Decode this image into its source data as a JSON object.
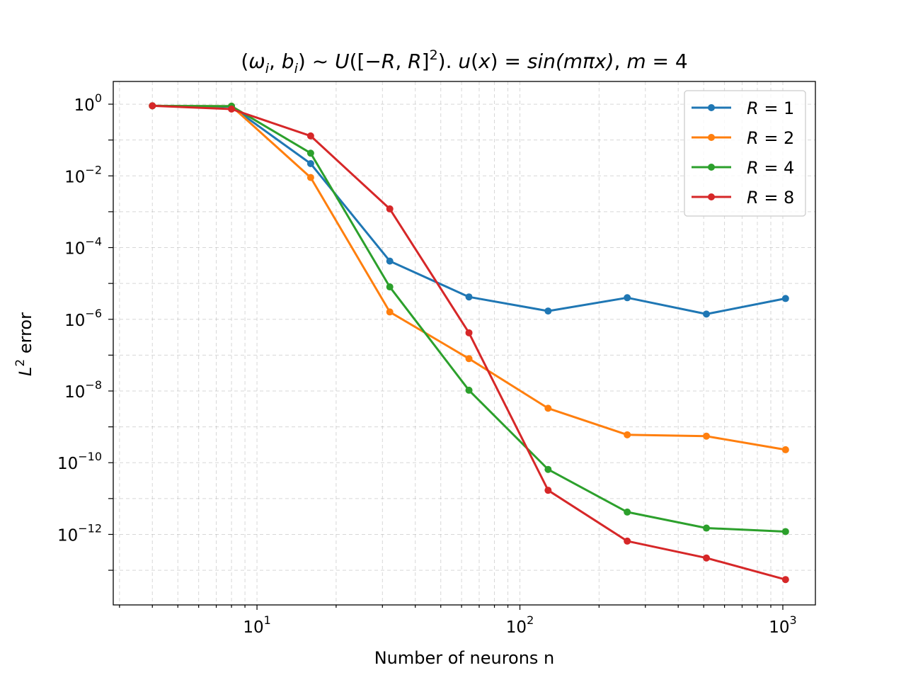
{
  "chart_data": {
    "type": "line",
    "title": "(ω_i, b_i) ~ U([−R, R]^2). u(x) = sin(mπx), m = 4",
    "xlabel": "Number of neurons n",
    "ylabel": "L^2 error",
    "xscale": "log",
    "yscale": "log",
    "xlim": [
      2.84,
      1330
    ],
    "ylim": [
      1.08e-14,
      4.3
    ],
    "grid": true,
    "legend_position": "top-right",
    "x": [
      4,
      8,
      16,
      32,
      64,
      128,
      256,
      512,
      1024
    ],
    "x_ticks": [
      {
        "value": 10,
        "base": "10",
        "exp": "1"
      },
      {
        "value": 100,
        "base": "10",
        "exp": "2"
      },
      {
        "value": 1000,
        "base": "10",
        "exp": "3"
      }
    ],
    "y_ticks": [
      {
        "value": 1,
        "base": "10",
        "exp": "0"
      },
      {
        "value": 0.01,
        "base": "10",
        "exp": "−2"
      },
      {
        "value": 0.0001,
        "base": "10",
        "exp": "−4"
      },
      {
        "value": 1e-06,
        "base": "10",
        "exp": "−6"
      },
      {
        "value": 1e-08,
        "base": "10",
        "exp": "−8"
      },
      {
        "value": 1e-10,
        "base": "10",
        "exp": "−10"
      },
      {
        "value": 1e-12,
        "base": "10",
        "exp": "−12"
      }
    ],
    "series": [
      {
        "name": "R = 1",
        "color": "#1f77b4",
        "values": [
          0.9,
          0.85,
          0.022,
          4.2e-05,
          4.2e-06,
          1.7e-06,
          4e-06,
          1.4e-06,
          3.8e-06
        ]
      },
      {
        "name": "R = 2",
        "color": "#ff7f0e",
        "values": [
          0.9,
          0.88,
          0.009,
          1.6e-06,
          8e-08,
          3.3e-09,
          6e-10,
          5.5e-10,
          2.3e-10
        ]
      },
      {
        "name": "R = 4",
        "color": "#2ca02c",
        "values": [
          0.9,
          0.88,
          0.043,
          8e-06,
          1.05e-08,
          6.5e-11,
          4.2e-12,
          1.5e-12,
          1.2e-12
        ]
      },
      {
        "name": "R = 8",
        "color": "#d62728",
        "values": [
          0.9,
          0.73,
          0.13,
          0.0012,
          4.2e-07,
          1.7e-11,
          6.5e-13,
          2.2e-13,
          5.5e-14
        ]
      }
    ]
  }
}
